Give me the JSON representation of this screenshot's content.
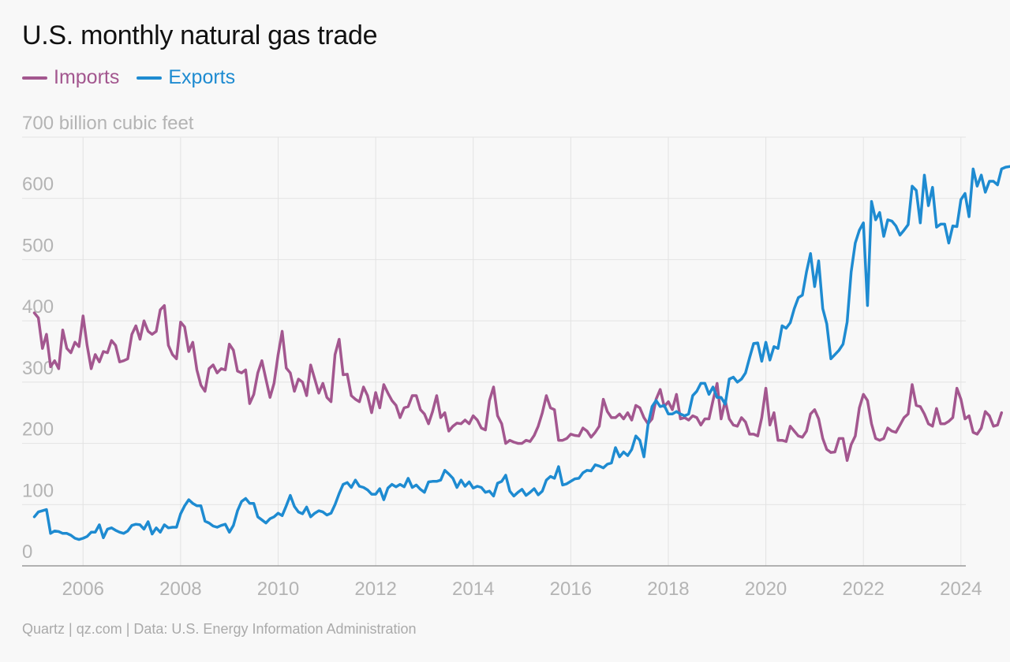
{
  "colors": {
    "imports": "#a3578f",
    "exports": "#1e8bd1",
    "grid": "#e3e3e3",
    "axis": "#999999",
    "tick": "#b4b4b4"
  },
  "chart_data": {
    "type": "line",
    "title": "U.S. monthly natural gas trade",
    "ylabel": "700 billion cubic feet",
    "source": "Quartz | qz.com | Data: U.S. Energy Information Administration",
    "xlim": [
      2004.75,
      2024.1
    ],
    "ylim": [
      0,
      700
    ],
    "x_ticks": [
      2006,
      2008,
      2010,
      2012,
      2014,
      2016,
      2018,
      2020,
      2022,
      2024
    ],
    "y_ticks": [
      0,
      100,
      200,
      300,
      400,
      500,
      600
    ],
    "grid": "on",
    "legend": "top-left",
    "start_date": "2005-01",
    "series": [
      {
        "name": "Imports",
        "key": "imports",
        "values": [
          413,
          405,
          355,
          378,
          325,
          335,
          322,
          385,
          355,
          348,
          365,
          358,
          408,
          360,
          322,
          345,
          333,
          350,
          348,
          368,
          360,
          333,
          335,
          338,
          378,
          392,
          370,
          400,
          383,
          378,
          383,
          418,
          425,
          360,
          345,
          338,
          398,
          390,
          350,
          365,
          320,
          295,
          285,
          322,
          328,
          315,
          322,
          320,
          362,
          352,
          318,
          315,
          320,
          265,
          280,
          315,
          335,
          305,
          275,
          298,
          345,
          383,
          323,
          315,
          285,
          305,
          300,
          278,
          328,
          305,
          282,
          298,
          275,
          268,
          345,
          370,
          312,
          313,
          278,
          272,
          268,
          292,
          278,
          250,
          283,
          258,
          296,
          282,
          270,
          262,
          242,
          258,
          260,
          278,
          278,
          255,
          248,
          232,
          252,
          278,
          242,
          250,
          220,
          228,
          233,
          232,
          238,
          232,
          245,
          238,
          225,
          222,
          270,
          292,
          245,
          232,
          200,
          205,
          202,
          200,
          200,
          205,
          203,
          213,
          228,
          250,
          278,
          258,
          255,
          205,
          205,
          208,
          215,
          213,
          212,
          225,
          220,
          210,
          218,
          228,
          272,
          252,
          242,
          242,
          248,
          240,
          250,
          238,
          262,
          258,
          242,
          232,
          240,
          272,
          288,
          260,
          268,
          255,
          280,
          240,
          242,
          238,
          245,
          242,
          230,
          240,
          240,
          270,
          298,
          240,
          270,
          240,
          230,
          228,
          242,
          235,
          215,
          215,
          212,
          242,
          290,
          230,
          250,
          205,
          205,
          203,
          228,
          220,
          212,
          210,
          220,
          248,
          255,
          240,
          208,
          190,
          185,
          186,
          208,
          208,
          172,
          198,
          212,
          258,
          280,
          270,
          232,
          208,
          205,
          208,
          225,
          220,
          218,
          230,
          242,
          248,
          296,
          262,
          260,
          248,
          232,
          228,
          257,
          232,
          232,
          236,
          242,
          290,
          272,
          240,
          245,
          218,
          215,
          225,
          252,
          245,
          228,
          230,
          250
        ]
      },
      {
        "name": "Exports",
        "key": "exports",
        "values": [
          80,
          88,
          90,
          92,
          53,
          57,
          56,
          53,
          53,
          50,
          45,
          43,
          45,
          48,
          55,
          55,
          67,
          46,
          60,
          62,
          58,
          55,
          53,
          57,
          66,
          68,
          67,
          60,
          72,
          52,
          62,
          55,
          67,
          62,
          63,
          63,
          85,
          98,
          108,
          102,
          98,
          98,
          73,
          70,
          65,
          63,
          66,
          68,
          55,
          66,
          90,
          105,
          110,
          102,
          102,
          80,
          75,
          70,
          77,
          80,
          86,
          82,
          98,
          115,
          97,
          88,
          85,
          96,
          80,
          86,
          90,
          88,
          83,
          86,
          100,
          118,
          133,
          136,
          128,
          140,
          130,
          128,
          124,
          117,
          117,
          126,
          108,
          127,
          133,
          129,
          133,
          129,
          143,
          128,
          132,
          125,
          120,
          137,
          138,
          138,
          140,
          156,
          150,
          143,
          128,
          140,
          130,
          137,
          127,
          130,
          128,
          120,
          122,
          114,
          135,
          138,
          148,
          122,
          114,
          120,
          125,
          115,
          120,
          126,
          116,
          122,
          140,
          146,
          143,
          162,
          132,
          134,
          138,
          142,
          143,
          152,
          156,
          155,
          165,
          163,
          160,
          166,
          168,
          193,
          178,
          186,
          180,
          190,
          212,
          205,
          178,
          230,
          260,
          270,
          260,
          262,
          248,
          248,
          252,
          248,
          245,
          248,
          278,
          285,
          298,
          298,
          280,
          292,
          275,
          275,
          264,
          305,
          308,
          300,
          305,
          315,
          340,
          363,
          364,
          334,
          365,
          336,
          358,
          355,
          392,
          388,
          397,
          420,
          438,
          442,
          480,
          510,
          456,
          498,
          420,
          395,
          338,
          345,
          352,
          362,
          398,
          480,
          527,
          548,
          560,
          425,
          595,
          565,
          577,
          538,
          565,
          563,
          555,
          540,
          548,
          557,
          620,
          613,
          560,
          638,
          588,
          618,
          553,
          558,
          558,
          527,
          555,
          554,
          598,
          608,
          570,
          648,
          620,
          638,
          610,
          628,
          628,
          622,
          648,
          651,
          652
        ]
      }
    ]
  }
}
